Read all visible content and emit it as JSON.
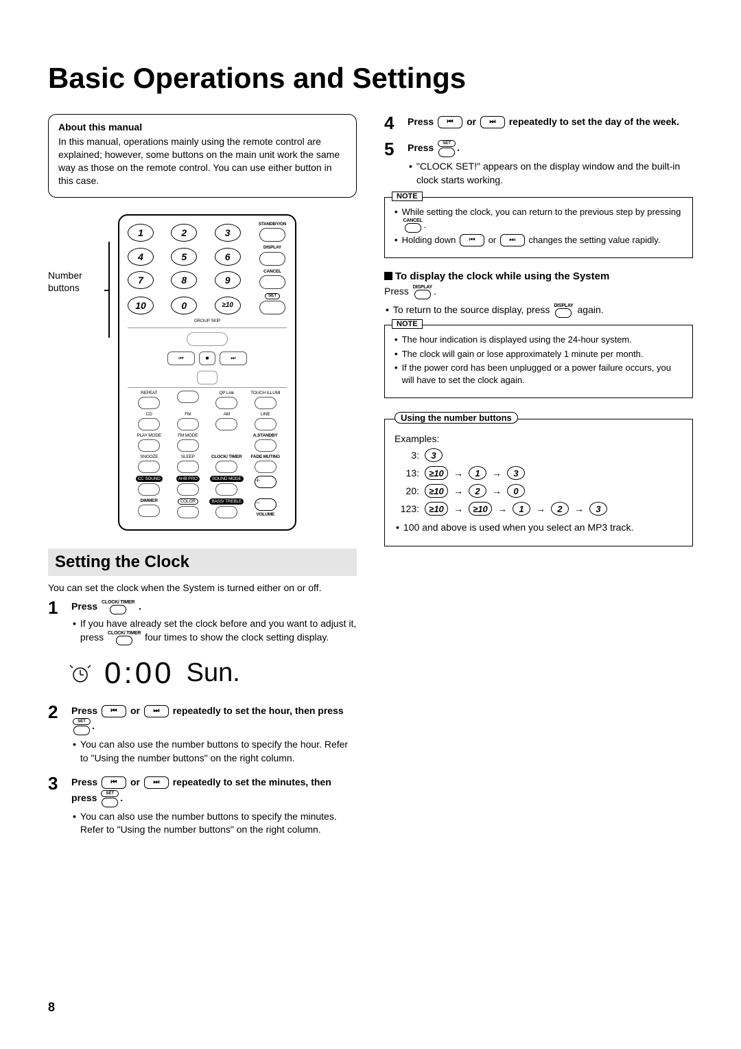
{
  "page": {
    "title": "Basic Operations and Settings",
    "number": "8"
  },
  "about": {
    "title": "About this manual",
    "text": "In this manual, operations mainly using the remote control are explained; however, some buttons on the main unit work the same way as those on the remote control. You can use either button in this case."
  },
  "remote": {
    "label": "Number buttons",
    "row_labels": {
      "standby": "STANDBY/ON",
      "display": "DISPLAY",
      "cancel": "CANCEL",
      "set": "SET",
      "group_skip": "GROUP SKIP",
      "repeat": "REPEAT",
      "qplink": "QP Link",
      "touch": "TOUCH ILLUMI",
      "cd": "CD",
      "fm": "FM",
      "am": "AM",
      "line": "LINE",
      "play_mode": "PLAY MODE",
      "fm_mode": "FM MODE",
      "astandby": "A.STANDBY",
      "snooze": "SNOOZE",
      "sleep": "SLEEP",
      "clocktimer": "CLOCK/ TIMER",
      "fade": "FADE MUTING",
      "ccsound": "CC SOUND",
      "ahb": "AHB PRO",
      "sound_mode": "SOUND MODE",
      "dimmer": "DIMMER",
      "color": "COLOR",
      "bass": "BASS/ TREBLE",
      "volume": "VOLUME"
    },
    "numpad": [
      "1",
      "2",
      "3",
      "4",
      "5",
      "6",
      "7",
      "8",
      "9",
      "10",
      "0",
      "≥10"
    ]
  },
  "section_clock": {
    "heading": "Setting the Clock",
    "intro": "You can set the clock when the System is turned either on or off.",
    "display": {
      "time": "0:00",
      "day": "Sun."
    }
  },
  "steps": {
    "1": {
      "title_a": "Press ",
      "icon_label": "CLOCK/ TIMER",
      "title_b": ".",
      "bullet": "If you have already set the clock before and you want to adjust it, press ",
      "bullet_tail": " four times to show the clock setting display."
    },
    "2": {
      "title_a": "Press ",
      "title_mid": " or ",
      "title_b": " repeatedly to set the hour, then press ",
      "icon_label": "SET",
      "title_c": ".",
      "bullet": "You can also use the number buttons to specify the hour. Refer to \"Using the number buttons\" on the right column."
    },
    "3": {
      "title_a": "Press ",
      "title_mid": " or ",
      "title_b": " repeatedly to set the minutes, then press ",
      "icon_label": "SET",
      "title_c": ".",
      "bullet": "You can also use the number buttons to specify the minutes. Refer to \"Using the number buttons\" on the right column."
    },
    "4": {
      "title_a": "Press ",
      "title_mid": " or ",
      "title_b": " repeatedly to set the day of the week."
    },
    "5": {
      "title_a": "Press ",
      "icon_label": "SET",
      "title_b": ".",
      "bullet": "\"CLOCK SET!\" appears on the display window and the built-in clock starts working."
    }
  },
  "note1": {
    "tag": "NOTE",
    "b1a": "While setting the clock, you can return to the previous step by pressing ",
    "b1_icon": "CANCEL",
    "b1b": ".",
    "b2a": "Holding down ",
    "b2b": " or ",
    "b2c": " changes the setting value rapidly."
  },
  "display_section": {
    "heading": "To display the clock while using the System",
    "line_a": "Press ",
    "icon_label": "DISPLAY",
    "line_b": ".",
    "bullet_a": "To return to the source display, press ",
    "bullet_b": " again."
  },
  "note2": {
    "tag": "NOTE",
    "b1": "The hour indication is displayed using the 24-hour system.",
    "b2": "The clock will gain or lose approximately 1 minute per month.",
    "b3": "If the power cord has been unplugged or a power failure occurs, you will have to set the clock again."
  },
  "number_box": {
    "title": "Using the number buttons",
    "examples_label": "Examples:",
    "rows": [
      {
        "label": "3:",
        "seq": [
          "3"
        ]
      },
      {
        "label": "13:",
        "seq": [
          "≥10",
          "1",
          "3"
        ]
      },
      {
        "label": "20:",
        "seq": [
          "≥10",
          "2",
          "0"
        ]
      },
      {
        "label": "123:",
        "seq": [
          "≥10",
          "≥10",
          "1",
          "2",
          "3"
        ]
      }
    ],
    "footer": "100 and above is used when you select an MP3 track."
  }
}
